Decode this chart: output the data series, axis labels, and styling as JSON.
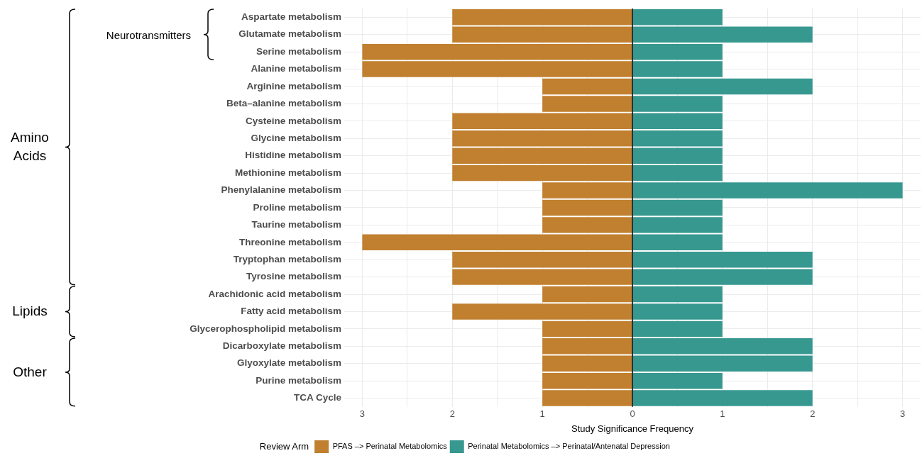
{
  "chart_data": {
    "type": "bar",
    "orientation": "horizontal",
    "stacked": true,
    "categories": [
      "Aspartate metabolism",
      "Glutamate metabolism",
      "Serine metabolism",
      "Alanine metabolism",
      "Arginine metabolism",
      "Beta–alanine metabolism",
      "Cysteine metabolism",
      "Glycine metabolism",
      "Histidine metabolism",
      "Methionine metabolism",
      "Phenylalanine metabolism",
      "Proline metabolism",
      "Taurine metabolism",
      "Threonine metabolism",
      "Tryptophan metabolism",
      "Tyrosine metabolism",
      "Arachidonic acid metabolism",
      "Fatty acid metabolism",
      "Glycerophospholipid metabolism",
      "Dicarboxylate metabolism",
      "Glyoxylate metabolism",
      "Purine metabolism",
      "TCA Cycle"
    ],
    "series": [
      {
        "name": "PFAS –> Perinatal Metabolomics",
        "color": "#c0802f",
        "values": [
          -2,
          -2,
          -3,
          -3,
          -1,
          -1,
          -2,
          -2,
          -2,
          -2,
          -1,
          -1,
          -1,
          -3,
          -2,
          -2,
          -1,
          -2,
          -1,
          -1,
          -1,
          -1,
          -1
        ]
      },
      {
        "name": "Perinatal Metabolomics –> Perinatal/Antenatal Depression",
        "color": "#379890",
        "values": [
          1,
          2,
          1,
          1,
          2,
          1,
          1,
          1,
          1,
          1,
          3,
          1,
          1,
          1,
          2,
          2,
          1,
          1,
          1,
          2,
          2,
          1,
          2
        ]
      }
    ],
    "xlim": [
      -3.2,
      3.2
    ],
    "xticks": [
      {
        "value": -3,
        "label": "3"
      },
      {
        "value": -2.5,
        "label": null
      },
      {
        "value": -2,
        "label": "2"
      },
      {
        "value": -1.5,
        "label": null
      },
      {
        "value": -1,
        "label": "1"
      },
      {
        "value": -0.5,
        "label": null
      },
      0,
      {
        "value": 0.5,
        "label": null
      },
      1,
      {
        "value": 1.5,
        "label": null
      },
      2,
      {
        "value": 2.5,
        "label": null
      },
      3
    ],
    "xlabel": "Study Significance Frequency",
    "legend": "bottom",
    "legend_title": "Review Arm",
    "grid": true,
    "ref_lines": [
      {
        "axis": "x",
        "value": 0,
        "color": "#000000"
      }
    ],
    "annotations": [
      "Neurotransmitters",
      "Amino Acids",
      "Lipids",
      "Other"
    ]
  }
}
